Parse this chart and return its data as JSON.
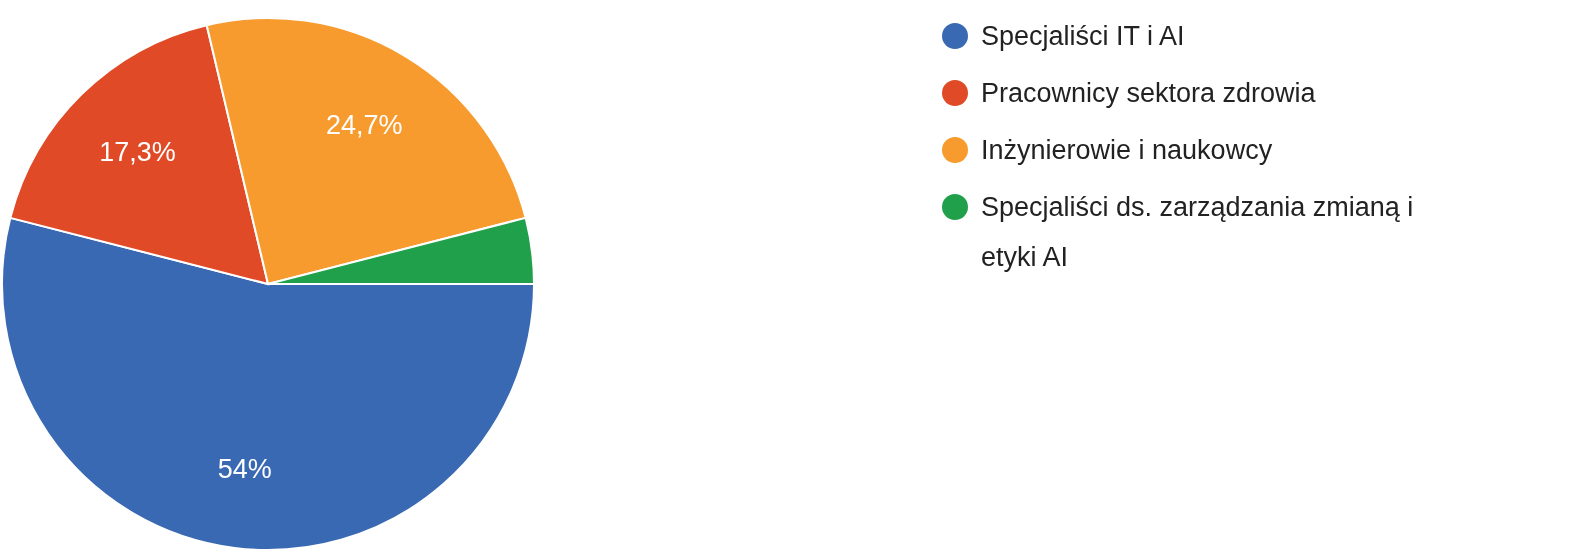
{
  "chart_data": {
    "type": "pie",
    "categories": [
      "Specjaliści IT i AI",
      "Pracownicy sektora zdrowia",
      "Inżynierowie i naukowcy",
      "Specjaliści ds. zarządzania zmianą i etyki AI"
    ],
    "values": [
      54,
      17.3,
      24.7,
      4
    ],
    "colors": [
      "#3a69b3",
      "#e04a27",
      "#f79b2e",
      "#21a04b"
    ],
    "value_labels": [
      "54%",
      "17,3%",
      "24,7%",
      null
    ],
    "legend": "top right"
  }
}
